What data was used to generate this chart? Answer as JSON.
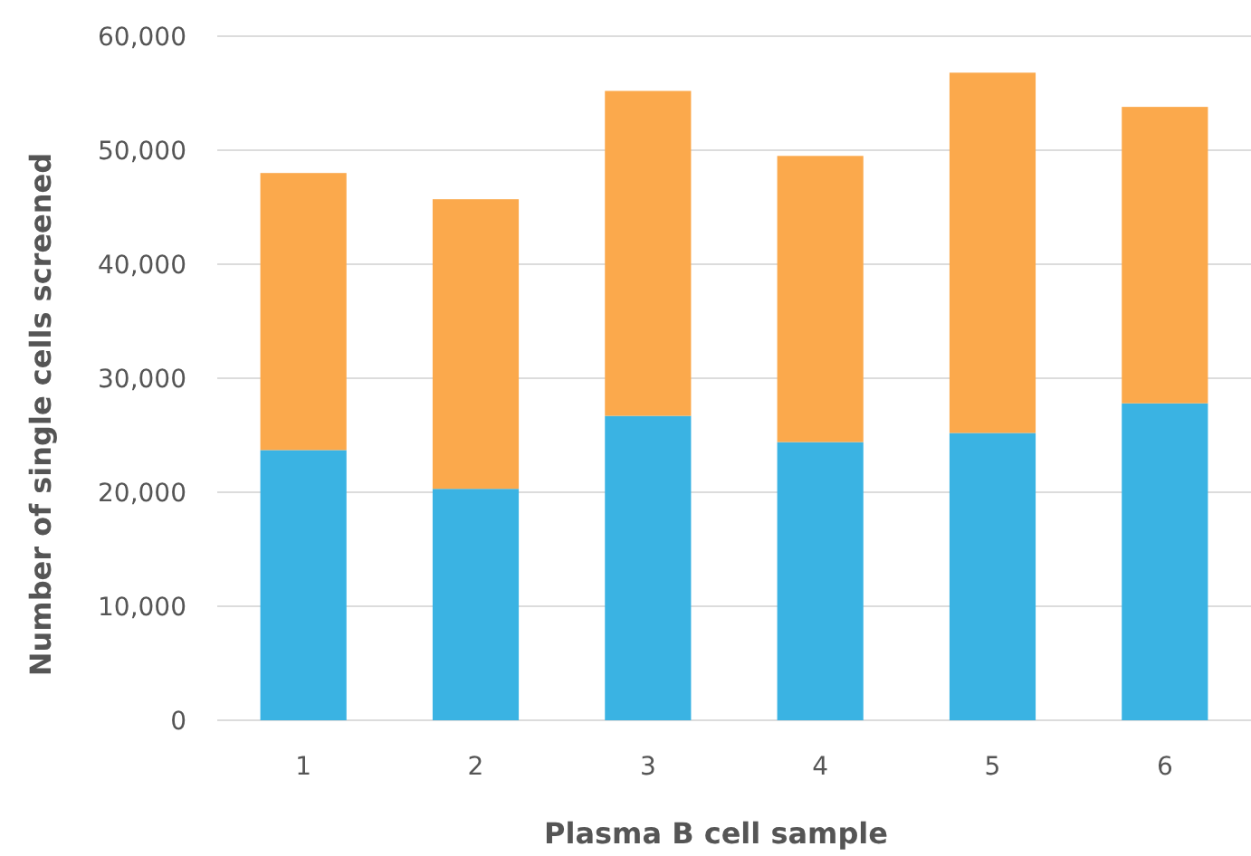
{
  "chart_data": {
    "type": "bar",
    "stacked": true,
    "xlabel": "Plasma B cell sample",
    "ylabel": "Number of single cells screened",
    "categories": [
      "1",
      "2",
      "3",
      "4",
      "5",
      "6"
    ],
    "series": [
      {
        "color": "#3ab3e3",
        "values": [
          23700,
          20300,
          26700,
          24400,
          25200,
          27800
        ]
      },
      {
        "color": "#fba94c",
        "values": [
          24300,
          25400,
          28500,
          25100,
          31600,
          26000
        ]
      }
    ],
    "ylim": [
      0,
      60000
    ],
    "yticks": [
      {
        "value": 0,
        "label": "0"
      },
      {
        "value": 10000,
        "label": "10,000"
      },
      {
        "value": 20000,
        "label": "20,000"
      },
      {
        "value": 30000,
        "label": "30,000"
      },
      {
        "value": 40000,
        "label": "40,000"
      },
      {
        "value": 50000,
        "label": "50,000"
      },
      {
        "value": 60000,
        "label": "60,000"
      }
    ],
    "grid": "y"
  }
}
